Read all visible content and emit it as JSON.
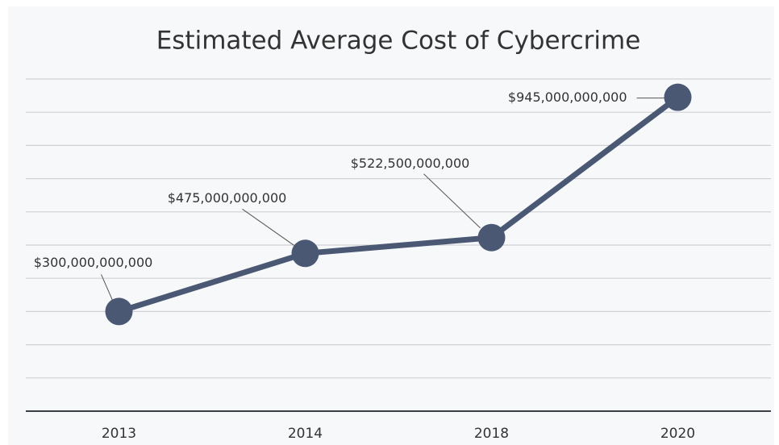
{
  "chart_data": {
    "type": "line",
    "title": "Estimated Average Cost of Cybercrime",
    "categories": [
      "2013",
      "2014",
      "2018",
      "2020"
    ],
    "values": [
      300000000000,
      475000000000,
      522500000000,
      945000000000
    ],
    "value_labels": [
      "$300,000,000,000",
      "$475,000,000,000",
      "$522,500,000,000",
      "$945,000,000,000"
    ],
    "color": "#4a5874",
    "ylim": [
      0,
      1000000000000
    ],
    "yticks": [
      0,
      100000000000,
      200000000000,
      300000000000,
      400000000000,
      500000000000,
      600000000000,
      700000000000,
      800000000000,
      900000000000,
      1000000000000
    ],
    "grid": true
  }
}
